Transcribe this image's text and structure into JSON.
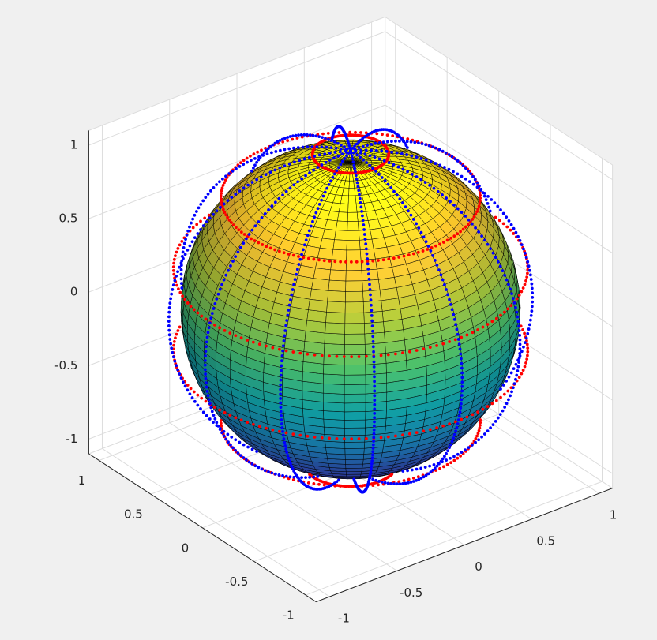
{
  "chart_data": {
    "type": "sphere3d",
    "view": {
      "azimuth": -37.5,
      "elevation": 30
    },
    "xlim": [
      -1.1,
      1.1
    ],
    "ylim": [
      -1.1,
      1.1
    ],
    "zlim": [
      -1.1,
      1.1
    ],
    "xticks": [
      -1,
      -0.5,
      0,
      0.5,
      1
    ],
    "yticks": [
      -1,
      -0.5,
      0,
      0.5,
      1
    ],
    "zticks": [
      -1,
      -0.5,
      0,
      0.5,
      1
    ],
    "grid": true,
    "surface": {
      "radius": 1,
      "n": 50,
      "edge_color": "#000000",
      "colormap": [
        "#3e26a8",
        "#4367f6",
        "#1f9cdd",
        "#12b3b8",
        "#4ac16d",
        "#a6bf37",
        "#f1b92e",
        "#f9fb0e"
      ]
    },
    "rings": {
      "color": "#ff0000",
      "radius": 1.08,
      "latitudes": [
        -75,
        -45,
        -15,
        15,
        45,
        78
      ]
    },
    "meridians": {
      "color": "#0000ff",
      "radius": 1.08,
      "longitudes": [
        0,
        30,
        60,
        90,
        120,
        150
      ]
    }
  }
}
